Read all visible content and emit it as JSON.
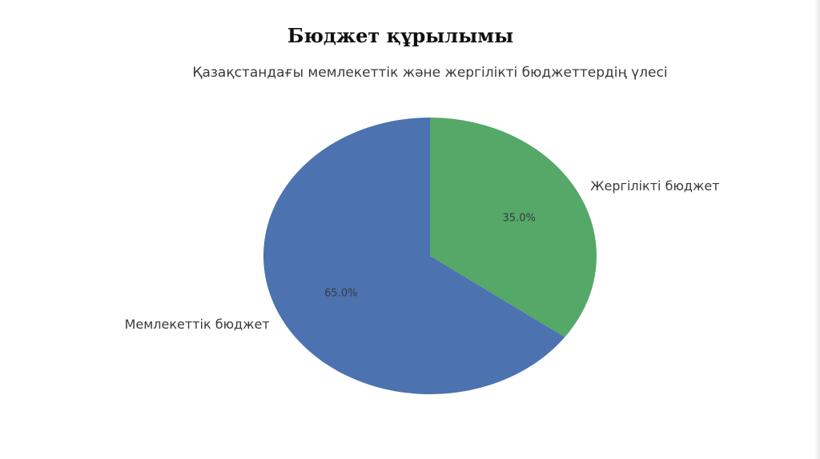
{
  "slide": {
    "title": "Бюджет құрылымы"
  },
  "chart_data": {
    "type": "pie",
    "title": "Қазақстандағы мемлекеттік және жергілікті бюджеттердің үлесі",
    "start_angle_deg": 90,
    "direction": "clockwise",
    "slices": [
      {
        "label": "Жергілікті бюджет",
        "value": 35.0,
        "pct_label": "35.0%",
        "color": "#55a868"
      },
      {
        "label": "Мемлекеттік бюджет",
        "value": 65.0,
        "pct_label": "65.0%",
        "color": "#4c72b0"
      }
    ]
  }
}
